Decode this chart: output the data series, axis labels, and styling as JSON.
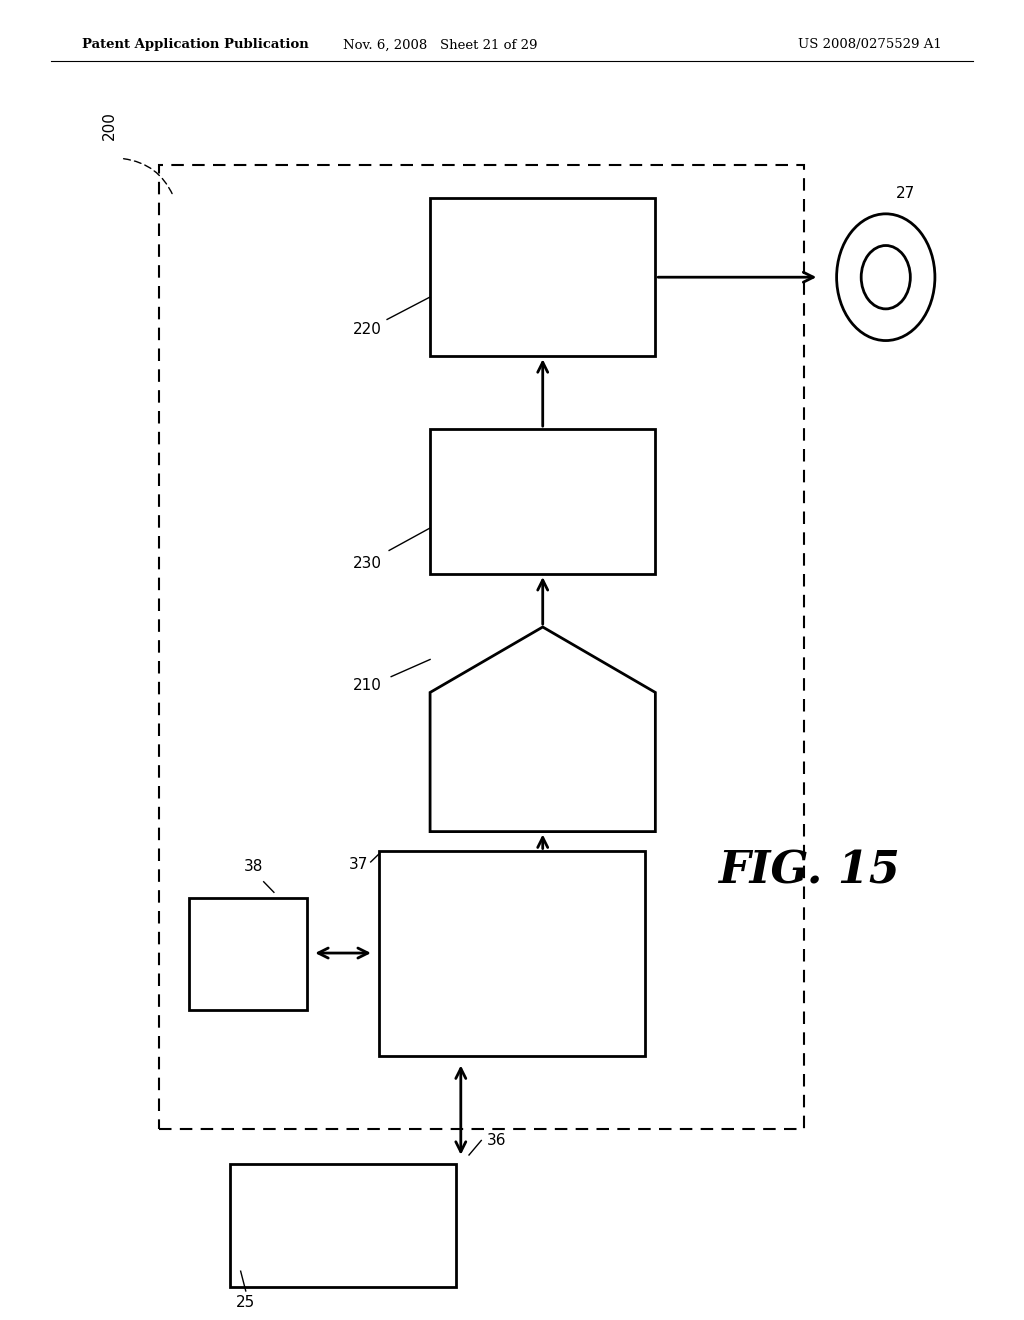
{
  "bg_color": "#ffffff",
  "header_left": "Patent Application Publication",
  "header_mid": "Nov. 6, 2008   Sheet 21 of 29",
  "header_right": "US 2008/0275529 A1",
  "fig_label": "FIG. 15",
  "label_200": "200",
  "label_27": "27",
  "label_220": "220",
  "label_230": "230",
  "label_210": "210",
  "label_37": "37",
  "label_38": "38",
  "label_36": "36",
  "label_25": "25"
}
